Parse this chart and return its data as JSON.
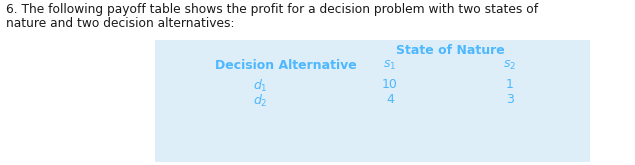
{
  "question_text_line1": "6. The following payoff table shows the profit for a decision problem with two states of",
  "question_text_line2": "nature and two decision alternatives:",
  "table_header": "State of Nature",
  "col_header_left": "Decision Alternative",
  "col_header_s1": "$s_1$",
  "col_header_s2": "$s_2$",
  "row1_label": "$d_1$",
  "row2_label": "$d_2$",
  "row1_s1": "10",
  "row1_s2": "1",
  "row2_s1": "4",
  "row2_s2": "3",
  "text_color": "#1a1a1a",
  "blue_color": "#4db8ff",
  "table_bg_color": "#ddeef8",
  "fig_bg_color": "#ffffff",
  "question_fontsize": 8.8,
  "table_fontsize": 9.0
}
